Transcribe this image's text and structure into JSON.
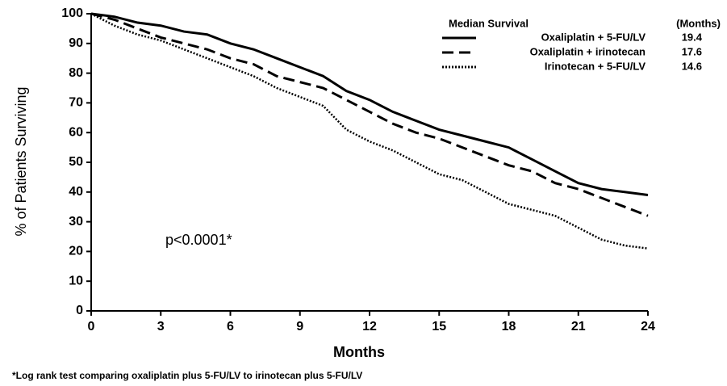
{
  "chart_data": {
    "type": "line",
    "x_label": "Months",
    "y_label": "% of Patients Surviving",
    "annotation": "p<0.0001*",
    "footnote": "*Log rank test comparing oxaliplatin plus 5-FU/LV to irinotecan plus 5-FU/LV",
    "legend_title": "Median Survival",
    "legend_value_header": "(Months)",
    "legend_position": "upper right",
    "x": [
      0,
      1,
      2,
      3,
      4,
      5,
      6,
      7,
      8,
      9,
      10,
      11,
      12,
      13,
      14,
      15,
      16,
      17,
      18,
      19,
      20,
      21,
      22,
      23,
      24
    ],
    "series": [
      {
        "name": "Oxaliplatin + 5-FU/LV",
        "color": "#000000",
        "dash": "solid",
        "median": 19.4,
        "values": [
          100,
          99,
          97,
          96,
          94,
          93,
          90,
          88,
          85,
          82,
          79,
          74,
          71,
          67,
          64,
          61,
          59,
          57,
          55,
          51,
          47,
          43,
          41,
          40,
          39
        ]
      },
      {
        "name": "Oxaliplatin + irinotecan",
        "color": "#000000",
        "dash": "dashed",
        "median": 17.6,
        "values": [
          100,
          98,
          95,
          92,
          90,
          88,
          85,
          83,
          79,
          77,
          75,
          71,
          67,
          63,
          60,
          58,
          55,
          52,
          49,
          47,
          43,
          41,
          38,
          35,
          32
        ]
      },
      {
        "name": "Irinotecan + 5-FU/LV",
        "color": "#000000",
        "dash": "dotted",
        "median": 14.6,
        "values": [
          100,
          96,
          93,
          91,
          88,
          85,
          82,
          79,
          75,
          72,
          69,
          61,
          57,
          54,
          50,
          46,
          44,
          40,
          36,
          34,
          32,
          28,
          24,
          22,
          21
        ]
      }
    ],
    "xlim": [
      0,
      24
    ],
    "xticks": [
      0,
      3,
      6,
      9,
      12,
      15,
      18,
      21,
      24
    ],
    "ylim": [
      0,
      100
    ],
    "yticks": [
      0,
      10,
      20,
      30,
      40,
      50,
      60,
      70,
      80,
      90,
      100
    ],
    "grid": false
  }
}
